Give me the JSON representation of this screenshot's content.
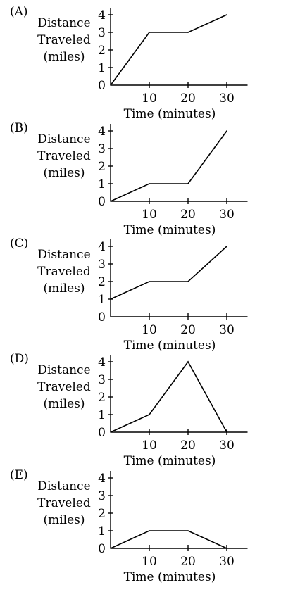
{
  "chart_data": [
    {
      "type": "line",
      "option_label": "(A)",
      "ylabel": [
        "Distance",
        "Traveled",
        "(miles)"
      ],
      "xlabel": "Time (minutes)",
      "xticks": [
        10,
        20,
        30
      ],
      "yticks": [
        0,
        1,
        2,
        3,
        4
      ],
      "xlim": [
        0,
        35
      ],
      "ylim": [
        0,
        4.4
      ],
      "points": [
        [
          0,
          0
        ],
        [
          10,
          3
        ],
        [
          20,
          3
        ],
        [
          30,
          4
        ]
      ]
    },
    {
      "type": "line",
      "option_label": "(B)",
      "ylabel": [
        "Distance",
        "Traveled",
        "(miles)"
      ],
      "xlabel": "Time (minutes)",
      "xticks": [
        10,
        20,
        30
      ],
      "yticks": [
        0,
        1,
        2,
        3,
        4
      ],
      "xlim": [
        0,
        35
      ],
      "ylim": [
        0,
        4.4
      ],
      "points": [
        [
          0,
          0
        ],
        [
          10,
          1
        ],
        [
          20,
          1
        ],
        [
          30,
          4
        ]
      ]
    },
    {
      "type": "line",
      "option_label": "(C)",
      "ylabel": [
        "Distance",
        "Traveled",
        "(miles)"
      ],
      "xlabel": "Time (minutes)",
      "xticks": [
        10,
        20,
        30
      ],
      "yticks": [
        0,
        1,
        2,
        3,
        4
      ],
      "xlim": [
        0,
        35
      ],
      "ylim": [
        0,
        4.4
      ],
      "points": [
        [
          0,
          1
        ],
        [
          10,
          2
        ],
        [
          20,
          2
        ],
        [
          30,
          4
        ]
      ]
    },
    {
      "type": "line",
      "option_label": "(D)",
      "ylabel": [
        "Distance",
        "Traveled",
        "(miles)"
      ],
      "xlabel": "Time (minutes)",
      "xticks": [
        10,
        20,
        30
      ],
      "yticks": [
        0,
        1,
        2,
        3,
        4
      ],
      "xlim": [
        0,
        35
      ],
      "ylim": [
        0,
        4.4
      ],
      "points": [
        [
          0,
          0
        ],
        [
          10,
          1
        ],
        [
          20,
          4
        ],
        [
          30,
          0
        ]
      ]
    },
    {
      "type": "line",
      "option_label": "(E)",
      "ylabel": [
        "Distance",
        "Traveled",
        "(miles)"
      ],
      "xlabel": "Time (minutes)",
      "xticks": [
        10,
        20,
        30
      ],
      "yticks": [
        0,
        1,
        2,
        3,
        4
      ],
      "xlim": [
        0,
        35
      ],
      "ylim": [
        0,
        4.4
      ],
      "points": [
        [
          0,
          0
        ],
        [
          10,
          1
        ],
        [
          20,
          1
        ],
        [
          30,
          0
        ]
      ]
    }
  ]
}
